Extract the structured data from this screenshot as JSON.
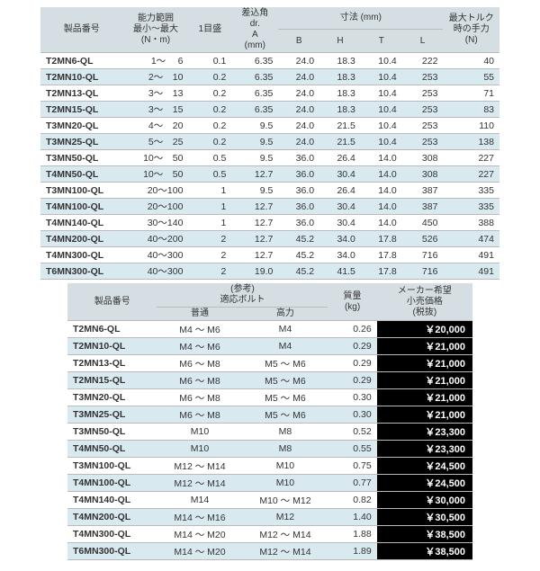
{
  "table1": {
    "headers": {
      "pn": "製品番号",
      "capacity": "能力範囲\n最小～最大\n(N・m)",
      "grad": "1目盛",
      "drive": "差込角\ndr.\nA\n(mm)",
      "dim": "寸法 (mm)",
      "B": "B",
      "H": "H",
      "T": "T",
      "L": "L",
      "handforce": "最大トルク\n時の手力\n(N)"
    },
    "rows": [
      {
        "pn": "T2MN6-QL",
        "cap": "1～　 6",
        "grad": "0.1",
        "drive": "6.35",
        "B": "24.0",
        "H": "18.3",
        "T": "10.4",
        "L": "222",
        "hf": "40"
      },
      {
        "pn": "T2MN10-QL",
        "cap": "2～　10",
        "grad": "0.2",
        "drive": "6.35",
        "B": "24.0",
        "H": "18.3",
        "T": "10.4",
        "L": "253",
        "hf": "55"
      },
      {
        "pn": "T2MN13-QL",
        "cap": "3～　13",
        "grad": "0.2",
        "drive": "6.35",
        "B": "24.0",
        "H": "18.3",
        "T": "10.4",
        "L": "253",
        "hf": "71"
      },
      {
        "pn": "T2MN15-QL",
        "cap": "3～　15",
        "grad": "0.2",
        "drive": "6.35",
        "B": "24.0",
        "H": "18.3",
        "T": "10.4",
        "L": "253",
        "hf": "83"
      },
      {
        "pn": "T3MN20-QL",
        "cap": "4～　20",
        "grad": "0.2",
        "drive": "9.5",
        "B": "24.0",
        "H": "21.5",
        "T": "10.4",
        "L": "253",
        "hf": "110"
      },
      {
        "pn": "T3MN25-QL",
        "cap": "5～　25",
        "grad": "0.2",
        "drive": "9.5",
        "B": "24.0",
        "H": "21.5",
        "T": "10.4",
        "L": "253",
        "hf": "138"
      },
      {
        "pn": "T3MN50-QL",
        "cap": "10～　50",
        "grad": "0.5",
        "drive": "9.5",
        "B": "36.0",
        "H": "26.4",
        "T": "14.0",
        "L": "308",
        "hf": "227"
      },
      {
        "pn": "T4MN50-QL",
        "cap": "10～　50",
        "grad": "0.5",
        "drive": "12.7",
        "B": "36.0",
        "H": "30.4",
        "T": "14.0",
        "L": "308",
        "hf": "227"
      },
      {
        "pn": "T3MN100-QL",
        "cap": "20～100",
        "grad": "1",
        "drive": "9.5",
        "B": "36.0",
        "H": "26.4",
        "T": "14.0",
        "L": "387",
        "hf": "335"
      },
      {
        "pn": "T4MN100-QL",
        "cap": "20～100",
        "grad": "1",
        "drive": "12.7",
        "B": "36.0",
        "H": "30.4",
        "T": "14.0",
        "L": "387",
        "hf": "335"
      },
      {
        "pn": "T4MN140-QL",
        "cap": "30～140",
        "grad": "1",
        "drive": "12.7",
        "B": "36.0",
        "H": "30.4",
        "T": "14.0",
        "L": "450",
        "hf": "388"
      },
      {
        "pn": "T4MN200-QL",
        "cap": "40～200",
        "grad": "2",
        "drive": "12.7",
        "B": "45.2",
        "H": "34.0",
        "T": "17.8",
        "L": "526",
        "hf": "474"
      },
      {
        "pn": "T4MN300-QL",
        "cap": "40～300",
        "grad": "2",
        "drive": "12.7",
        "B": "45.2",
        "H": "34.0",
        "T": "17.8",
        "L": "716",
        "hf": "491"
      },
      {
        "pn": "T6MN300-QL",
        "cap": "40～300",
        "grad": "2",
        "drive": "19.0",
        "B": "45.2",
        "H": "41.5",
        "T": "17.8",
        "L": "716",
        "hf": "491"
      }
    ]
  },
  "table2": {
    "headers": {
      "pn": "製品番号",
      "bolt": "(参考)\n適応ボルト",
      "normal": "普通",
      "high": "高力",
      "mass": "質量\n(kg)",
      "price": "メーカー希望\n小売価格\n(税抜)"
    },
    "rows": [
      {
        "pn": "T2MN6-QL",
        "normal": "M4 ～ M6",
        "high": "M4",
        "mass": "0.26",
        "price": "￥20,000"
      },
      {
        "pn": "T2MN10-QL",
        "normal": "M4 ～ M6",
        "high": "M4",
        "mass": "0.29",
        "price": "￥21,000"
      },
      {
        "pn": "T2MN13-QL",
        "normal": "M6 ～ M8",
        "high": "M5 ～ M6",
        "mass": "0.29",
        "price": "￥21,000"
      },
      {
        "pn": "T2MN15-QL",
        "normal": "M6 ～ M8",
        "high": "M5 ～ M6",
        "mass": "0.29",
        "price": "￥21,000"
      },
      {
        "pn": "T3MN20-QL",
        "normal": "M6 ～ M8",
        "high": "M5 ～ M6",
        "mass": "0.30",
        "price": "￥21,000"
      },
      {
        "pn": "T3MN25-QL",
        "normal": "M6 ～ M8",
        "high": "M5 ～ M6",
        "mass": "0.30",
        "price": "￥21,000"
      },
      {
        "pn": "T3MN50-QL",
        "normal": "M10",
        "high": "M8",
        "mass": "0.52",
        "price": "￥23,300"
      },
      {
        "pn": "T4MN50-QL",
        "normal": "M10",
        "high": "M8",
        "mass": "0.55",
        "price": "￥23,300"
      },
      {
        "pn": "T3MN100-QL",
        "normal": "M12 ～ M14",
        "high": "M10",
        "mass": "0.75",
        "price": "￥24,500"
      },
      {
        "pn": "T4MN100-QL",
        "normal": "M12 ～ M14",
        "high": "M10",
        "mass": "0.77",
        "price": "￥24,500"
      },
      {
        "pn": "T4MN140-QL",
        "normal": "M14",
        "high": "M10 ～ M12",
        "mass": "0.82",
        "price": "￥30,000"
      },
      {
        "pn": "T4MN200-QL",
        "normal": "M14 ～ M16",
        "high": "M12",
        "mass": "1.40",
        "price": "￥30,500"
      },
      {
        "pn": "T4MN300-QL",
        "normal": "M14 ～ M20",
        "high": "M12 ～ M14",
        "mass": "1.88",
        "price": "￥38,500"
      },
      {
        "pn": "T6MN300-QL",
        "normal": "M14 ～ M20",
        "high": "M12 ～ M14",
        "mass": "1.89",
        "price": "￥38,500"
      }
    ]
  }
}
